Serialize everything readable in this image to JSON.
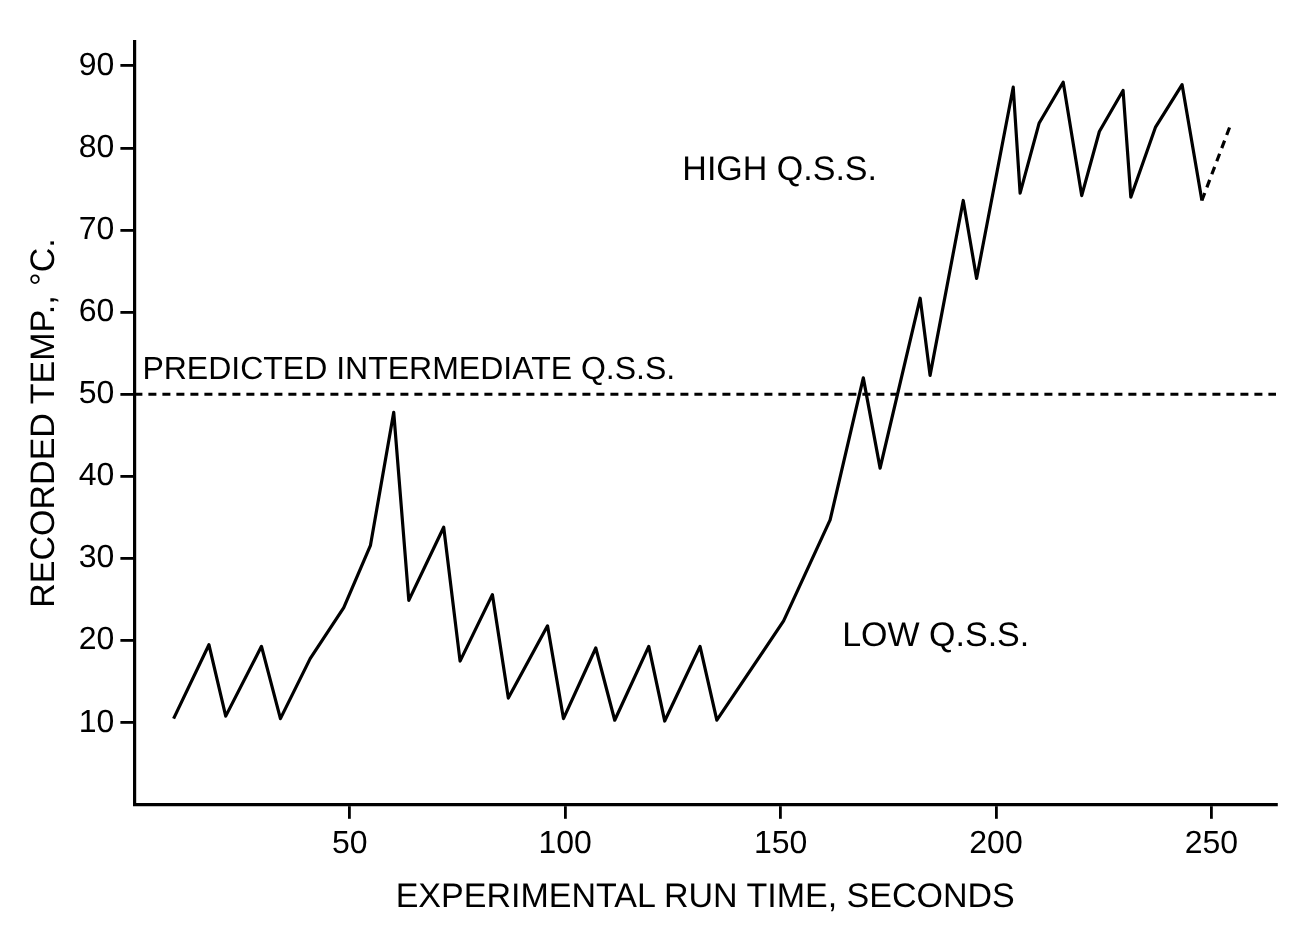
{
  "chart_data": {
    "type": "line",
    "xlabel": "EXPERIMENTAL RUN TIME, SECONDS",
    "ylabel": "RECORDED TEMP., °C.",
    "x": [
      9.1,
      17.3,
      21.2,
      29.5,
      33.9,
      40.8,
      48.6,
      54.8,
      60.2,
      63.7,
      71.8,
      75.6,
      83.1,
      86.8,
      95.9,
      99.6,
      107.1,
      111.5,
      119.4,
      123.1,
      131.3,
      135.2,
      150.7,
      161.5,
      169.2,
      173.1,
      182.4,
      184.7,
      192.4,
      195.5,
      204,
      205.6,
      210,
      215.6,
      219.9,
      224,
      229.5,
      231.3,
      237,
      243.2,
      247.8
    ],
    "series": [
      {
        "color": "#000000",
        "line_style": "solid",
        "values": [
          10.5,
          19.5,
          10.8,
          19.3,
          10.5,
          17.8,
          24,
          31.6,
          47.8,
          24.9,
          33.8,
          17.5,
          25.6,
          13,
          21.8,
          10.5,
          19.1,
          10.3,
          19.3,
          10.2,
          19.3,
          10.3,
          22.4,
          34.7,
          52,
          41,
          61.7,
          52.3,
          73.6,
          64.1,
          87.4,
          74.5,
          83,
          88,
          74.2,
          82,
          87,
          74,
          82.5,
          87.7,
          73.6
        ]
      },
      {
        "color": "#000000",
        "line_style": "dashed",
        "x": [
          247.8,
          254.3
        ],
        "values": [
          73.6,
          82.6
        ]
      }
    ],
    "xlim": [
      0,
      265
    ],
    "xticks": [
      50,
      100,
      150,
      200,
      250
    ],
    "ylim": [
      0,
      93
    ],
    "yticks": [
      10,
      20,
      30,
      40,
      50,
      60,
      70,
      80,
      90
    ],
    "ref_lines": [
      {
        "axis": "y",
        "value": 50,
        "label": "PREDICTED INTERMEDIATE Q.S.S.",
        "color": "#000000",
        "line_style": "dashed"
      }
    ],
    "annotations": [
      "HIGH Q.S.S.",
      "LOW Q.S.S."
    ],
    "grid": false,
    "legend": false,
    "marker": "none"
  }
}
